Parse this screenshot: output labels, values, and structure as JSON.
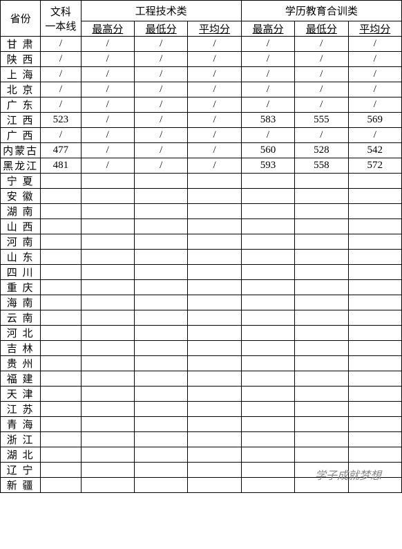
{
  "headers": {
    "province": "省份",
    "baseline": "文科\n一本线",
    "group1": "工程技术类",
    "group2": "学历教育合训类",
    "max": "最高分",
    "min": "最低分",
    "avg": "平均分"
  },
  "rows": [
    {
      "province": "甘  肃",
      "baseline": "/",
      "g1max": "/",
      "g1min": "/",
      "g1avg": "/",
      "g2max": "/",
      "g2min": "/",
      "g2avg": "/"
    },
    {
      "province": "陕  西",
      "baseline": "/",
      "g1max": "/",
      "g1min": "/",
      "g1avg": "/",
      "g2max": "/",
      "g2min": "/",
      "g2avg": "/"
    },
    {
      "province": "上  海",
      "baseline": "/",
      "g1max": "/",
      "g1min": "/",
      "g1avg": "/",
      "g2max": "/",
      "g2min": "/",
      "g2avg": "/"
    },
    {
      "province": "北  京",
      "baseline": "/",
      "g1max": "/",
      "g1min": "/",
      "g1avg": "/",
      "g2max": "/",
      "g2min": "/",
      "g2avg": "/"
    },
    {
      "province": "广  东",
      "baseline": "/",
      "g1max": "/",
      "g1min": "/",
      "g1avg": "/",
      "g2max": "/",
      "g2min": "/",
      "g2avg": "/"
    },
    {
      "province": "江  西",
      "baseline": "523",
      "g1max": "/",
      "g1min": "/",
      "g1avg": "/",
      "g2max": "583",
      "g2min": "555",
      "g2avg": "569"
    },
    {
      "province": "广  西",
      "baseline": "/",
      "g1max": "/",
      "g1min": "/",
      "g1avg": "/",
      "g2max": "/",
      "g2min": "/",
      "g2avg": "/"
    },
    {
      "province": "内蒙古",
      "baseline": "477",
      "g1max": "/",
      "g1min": "/",
      "g1avg": "/",
      "g2max": "560",
      "g2min": "528",
      "g2avg": "542"
    },
    {
      "province": "黑龙江",
      "baseline": "481",
      "g1max": "/",
      "g1min": "/",
      "g1avg": "/",
      "g2max": "593",
      "g2min": "558",
      "g2avg": "572"
    },
    {
      "province": "宁  夏",
      "baseline": "",
      "g1max": "",
      "g1min": "",
      "g1avg": "",
      "g2max": "",
      "g2min": "",
      "g2avg": ""
    },
    {
      "province": "安  徽",
      "baseline": "",
      "g1max": "",
      "g1min": "",
      "g1avg": "",
      "g2max": "",
      "g2min": "",
      "g2avg": ""
    },
    {
      "province": "湖  南",
      "baseline": "",
      "g1max": "",
      "g1min": "",
      "g1avg": "",
      "g2max": "",
      "g2min": "",
      "g2avg": ""
    },
    {
      "province": "山  西",
      "baseline": "",
      "g1max": "",
      "g1min": "",
      "g1avg": "",
      "g2max": "",
      "g2min": "",
      "g2avg": ""
    },
    {
      "province": "河  南",
      "baseline": "",
      "g1max": "",
      "g1min": "",
      "g1avg": "",
      "g2max": "",
      "g2min": "",
      "g2avg": ""
    },
    {
      "province": "山  东",
      "baseline": "",
      "g1max": "",
      "g1min": "",
      "g1avg": "",
      "g2max": "",
      "g2min": "",
      "g2avg": ""
    },
    {
      "province": "四  川",
      "baseline": "",
      "g1max": "",
      "g1min": "",
      "g1avg": "",
      "g2max": "",
      "g2min": "",
      "g2avg": ""
    },
    {
      "province": "重  庆",
      "baseline": "",
      "g1max": "",
      "g1min": "",
      "g1avg": "",
      "g2max": "",
      "g2min": "",
      "g2avg": ""
    },
    {
      "province": "海  南",
      "baseline": "",
      "g1max": "",
      "g1min": "",
      "g1avg": "",
      "g2max": "",
      "g2min": "",
      "g2avg": ""
    },
    {
      "province": "云  南",
      "baseline": "",
      "g1max": "",
      "g1min": "",
      "g1avg": "",
      "g2max": "",
      "g2min": "",
      "g2avg": ""
    },
    {
      "province": "河  北",
      "baseline": "",
      "g1max": "",
      "g1min": "",
      "g1avg": "",
      "g2max": "",
      "g2min": "",
      "g2avg": ""
    },
    {
      "province": "吉  林",
      "baseline": "",
      "g1max": "",
      "g1min": "",
      "g1avg": "",
      "g2max": "",
      "g2min": "",
      "g2avg": ""
    },
    {
      "province": "贵  州",
      "baseline": "",
      "g1max": "",
      "g1min": "",
      "g1avg": "",
      "g2max": "",
      "g2min": "",
      "g2avg": ""
    },
    {
      "province": "福  建",
      "baseline": "",
      "g1max": "",
      "g1min": "",
      "g1avg": "",
      "g2max": "",
      "g2min": "",
      "g2avg": ""
    },
    {
      "province": "天  津",
      "baseline": "",
      "g1max": "",
      "g1min": "",
      "g1avg": "",
      "g2max": "",
      "g2min": "",
      "g2avg": ""
    },
    {
      "province": "江  苏",
      "baseline": "",
      "g1max": "",
      "g1min": "",
      "g1avg": "",
      "g2max": "",
      "g2min": "",
      "g2avg": ""
    },
    {
      "province": "青  海",
      "baseline": "",
      "g1max": "",
      "g1min": "",
      "g1avg": "",
      "g2max": "",
      "g2min": "",
      "g2avg": ""
    },
    {
      "province": "浙  江",
      "baseline": "",
      "g1max": "",
      "g1min": "",
      "g1avg": "",
      "g2max": "",
      "g2min": "",
      "g2avg": ""
    },
    {
      "province": "湖  北",
      "baseline": "",
      "g1max": "",
      "g1min": "",
      "g1avg": "",
      "g2max": "",
      "g2min": "",
      "g2avg": ""
    },
    {
      "province": "辽  宁",
      "baseline": "",
      "g1max": "",
      "g1min": "",
      "g1avg": "",
      "g2max": "",
      "g2min": "",
      "g2avg": ""
    },
    {
      "province": "新  疆",
      "baseline": "",
      "g1max": "",
      "g1min": "",
      "g1avg": "",
      "g2max": "",
      "g2min": "",
      "g2avg": ""
    }
  ],
  "watermark": "学子成就梦想"
}
